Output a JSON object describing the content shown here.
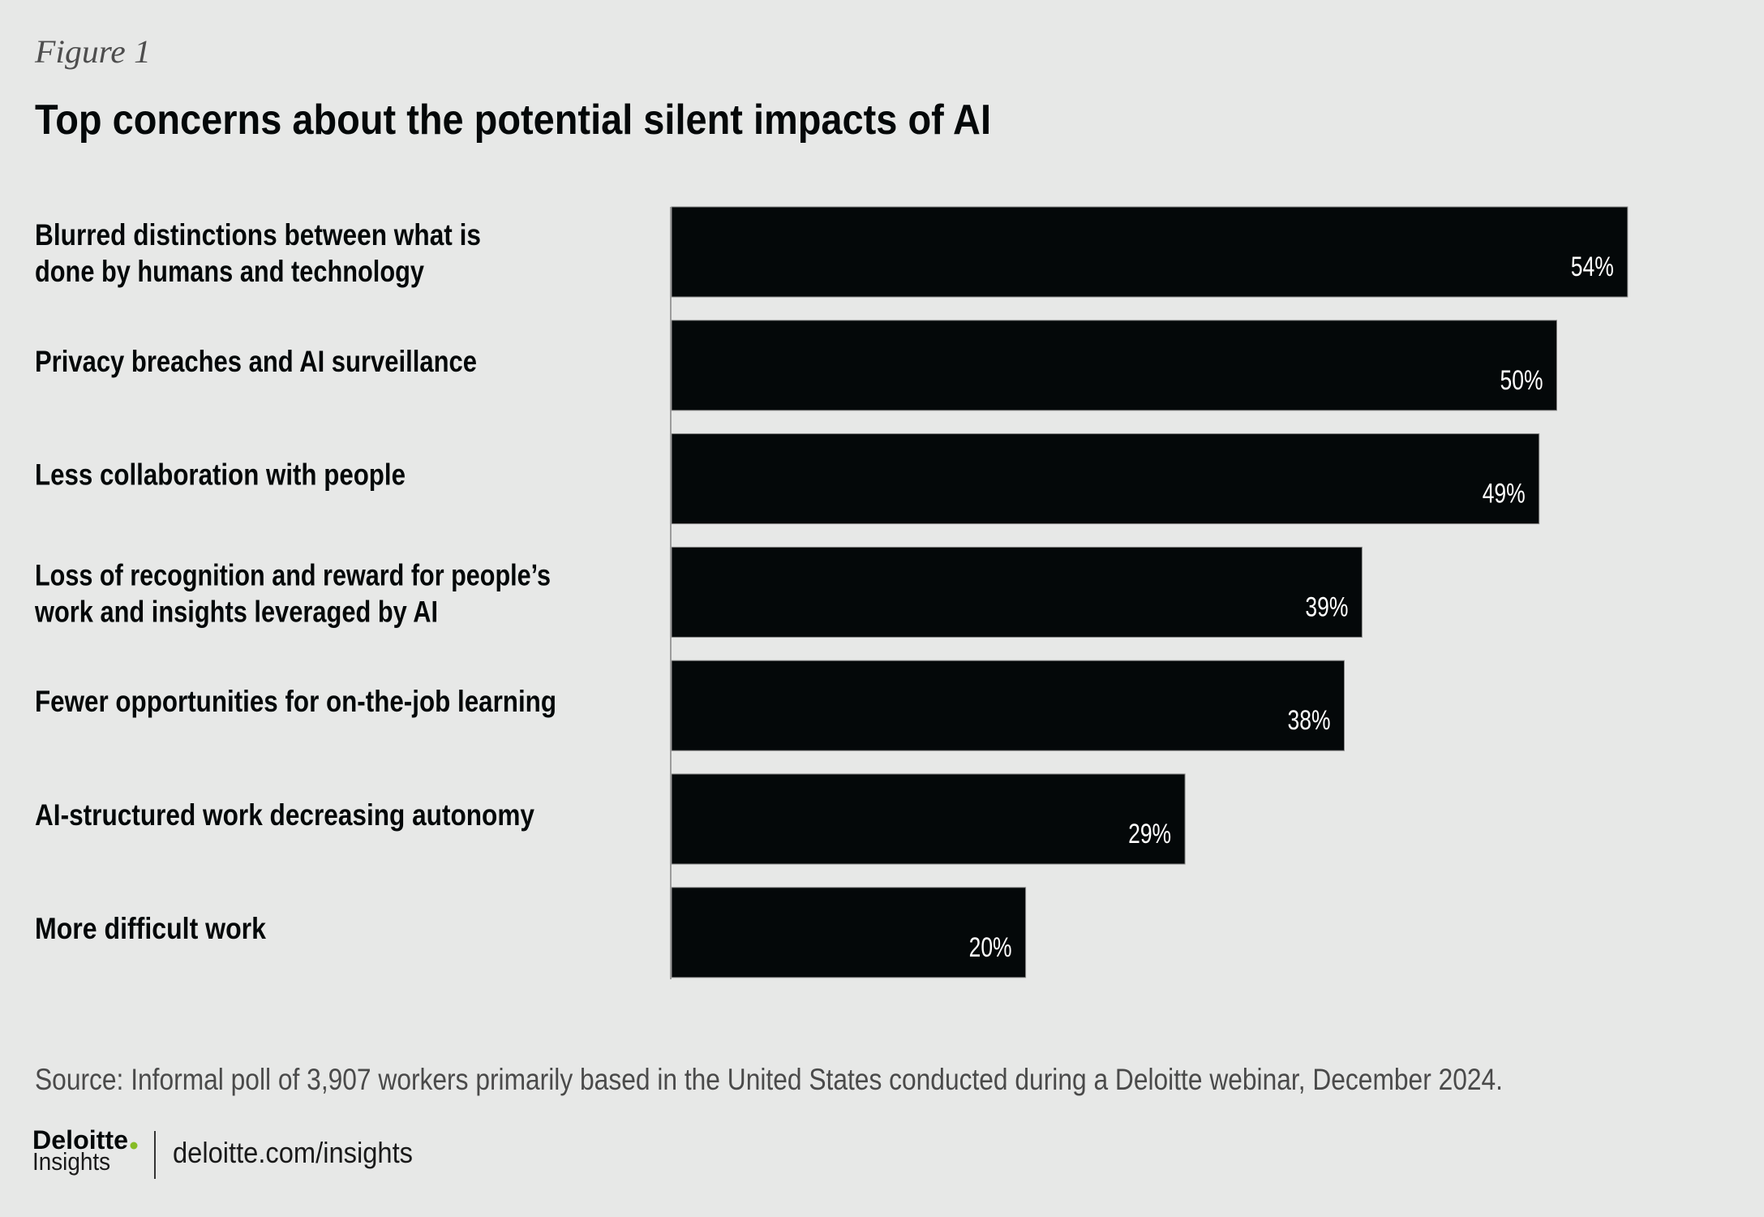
{
  "figure_label": "Figure 1",
  "chart_data": {
    "type": "bar",
    "orientation": "horizontal",
    "title": "Top concerns about the potential silent impacts of AI",
    "categories": [
      [
        "Blurred distinctions between what is",
        "done by humans and technology"
      ],
      [
        "Privacy breaches and AI surveillance"
      ],
      [
        "Less collaboration with people"
      ],
      [
        "Loss of recognition and reward for people’s",
        "work and insights leveraged by AI"
      ],
      [
        "Fewer opportunities for on-the-job learning"
      ],
      [
        "AI-structured work decreasing autonomy"
      ],
      [
        "More difficult work"
      ]
    ],
    "values": [
      54,
      50,
      49,
      39,
      38,
      29,
      20
    ],
    "value_labels": [
      "54%",
      "50%",
      "49%",
      "39%",
      "38%",
      "29%",
      "20%"
    ],
    "unit": "%",
    "xlabel": "",
    "ylabel": "",
    "xlim": [
      0,
      100
    ],
    "grid": false,
    "legend": "none",
    "bar_color": "#040809",
    "label_color": "#ffffff"
  },
  "source": "Source: Informal poll of 3,907 workers primarily based in the United States conducted during a Deloitte webinar, December 2024.",
  "footer": {
    "brand": "Deloitte",
    "brand_dot_color": "#86bc25",
    "brand_sub": "Insights",
    "url": "deloitte.com/insights"
  },
  "colors": {
    "background": "#e7e8e7",
    "text": "#040809",
    "source_text": "#4a4a4a"
  }
}
